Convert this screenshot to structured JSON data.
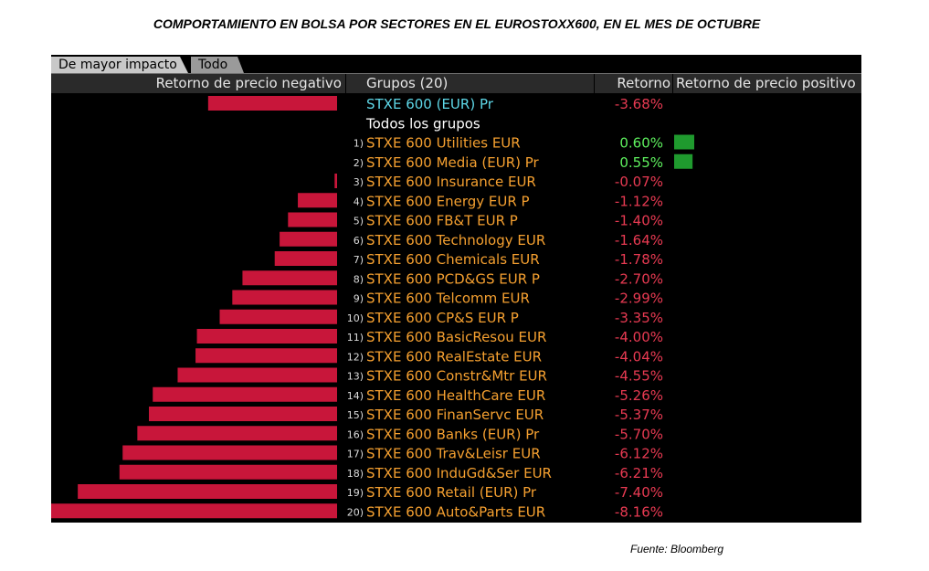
{
  "title": "COMPORTAMIENTO EN BOLSA POR SECTORES EN EL EUROSTOXX600, EN EL MES DE OCTUBRE",
  "source": "Fuente: Bloomberg",
  "tabs": [
    {
      "label": "De mayor impacto",
      "active": true
    },
    {
      "label": "Todo",
      "active": false
    }
  ],
  "header": {
    "negative_col": "Retorno de precio negativo",
    "groups_col": "Grupos (20)",
    "return_col": "Retorno",
    "positive_col": "Retorno de precio positivo"
  },
  "colors": {
    "negative_bar": "#c8163a",
    "positive_bar": "#1f9a2e",
    "index_name": "#5ed8e8",
    "sector_name": "#f5a030",
    "negative_value": "#e83a52",
    "positive_value": "#5ef05e",
    "group_label": "#ffffff"
  },
  "chart_data": {
    "type": "bar",
    "orientation": "horizontal-diverging",
    "index": {
      "name": "STXE 600 (EUR) Pr",
      "value": -3.68,
      "display": "-3.68%"
    },
    "group_label": "Todos los grupos",
    "categories": [
      "STXE 600 Utilities EUR",
      "STXE 600 Media (EUR) Pr",
      "STXE 600 Insurance EUR",
      "STXE 600 Energy EUR P",
      "STXE 600 FB&T EUR P",
      "STXE 600 Technology EUR",
      "STXE 600 Chemicals EUR",
      "STXE 600 PCD&GS EUR P",
      "STXE 600 Telcomm EUR",
      "STXE 600 CP&S EUR P",
      "STXE 600 BasicResou EUR",
      "STXE 600 RealEstate EUR",
      "STXE 600 Constr&Mtr EUR",
      "STXE 600 HealthCare EUR",
      "STXE 600 FinanServc EUR",
      "STXE 600 Banks (EUR) Pr",
      "STXE 600 Trav&Leisr EUR",
      "STXE 600 InduGd&Ser EUR",
      "STXE 600 Retail (EUR) Pr",
      "STXE 600 Auto&Parts EUR"
    ],
    "numbers": [
      "1)",
      "2)",
      "3)",
      "4)",
      "5)",
      "6)",
      "7)",
      "8)",
      "9)",
      "10)",
      "11)",
      "12)",
      "13)",
      "14)",
      "15)",
      "16)",
      "17)",
      "18)",
      "19)",
      "20)"
    ],
    "values": [
      0.6,
      0.55,
      -0.07,
      -1.12,
      -1.4,
      -1.64,
      -1.78,
      -2.7,
      -2.99,
      -3.35,
      -4.0,
      -4.04,
      -4.55,
      -5.26,
      -5.37,
      -5.7,
      -6.12,
      -6.21,
      -7.4,
      -8.16
    ],
    "labels": [
      "0.60%",
      "0.55%",
      "-0.07%",
      "-1.12%",
      "-1.40%",
      "-1.64%",
      "-1.78%",
      "-2.70%",
      "-2.99%",
      "-3.35%",
      "-4.00%",
      "-4.04%",
      "-4.55%",
      "-5.26%",
      "-5.37%",
      "-5.70%",
      "-6.12%",
      "-6.21%",
      "-7.40%",
      "-8.16%"
    ]
  }
}
